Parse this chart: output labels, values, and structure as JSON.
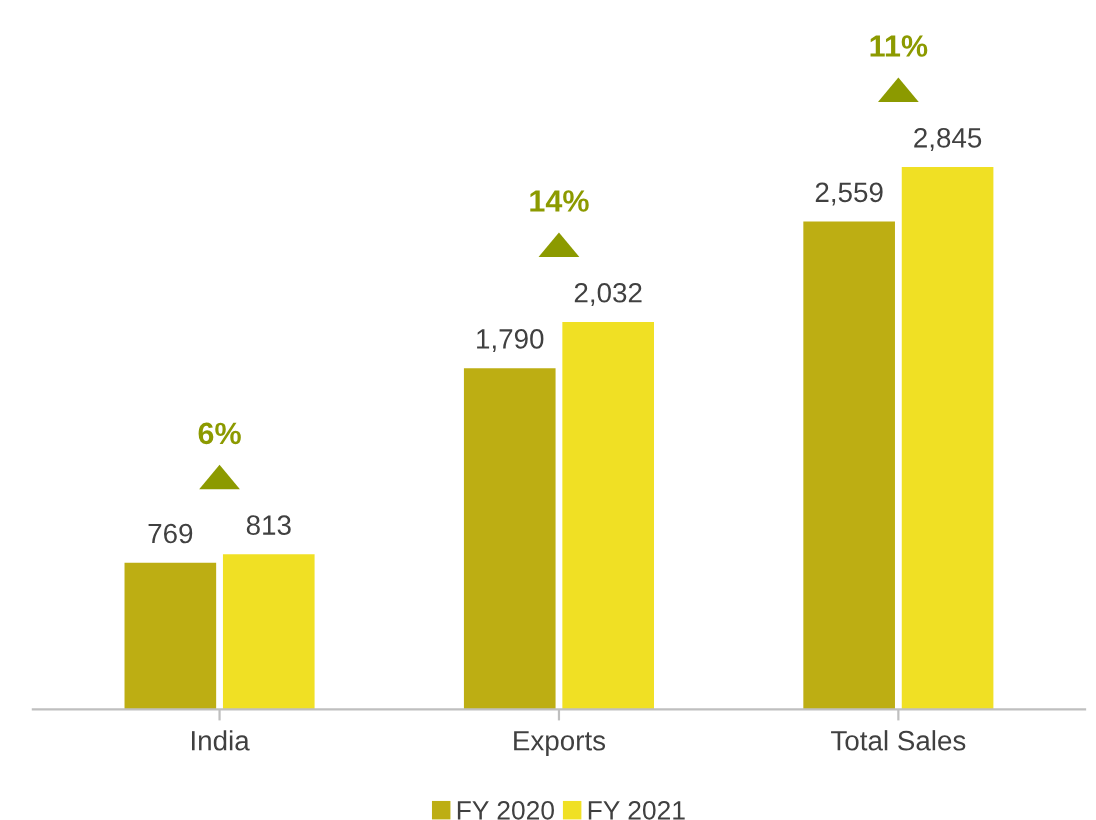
{
  "chart_data": {
    "type": "bar",
    "categories": [
      "India",
      "Exports",
      "Total Sales"
    ],
    "series": [
      {
        "name": "FY 2020",
        "color": "#bdae13",
        "values": [
          769,
          1790,
          2559
        ],
        "value_labels": [
          "769",
          "1,790",
          "2,559"
        ]
      },
      {
        "name": "FY 2021",
        "color": "#f0e024",
        "values": [
          813,
          2032,
          2845
        ],
        "value_labels": [
          "813",
          "2,032",
          "2,845"
        ]
      }
    ],
    "legend": "bottom",
    "grid": false,
    "annotations": [
      "6%",
      "14%",
      "11%"
    ]
  }
}
